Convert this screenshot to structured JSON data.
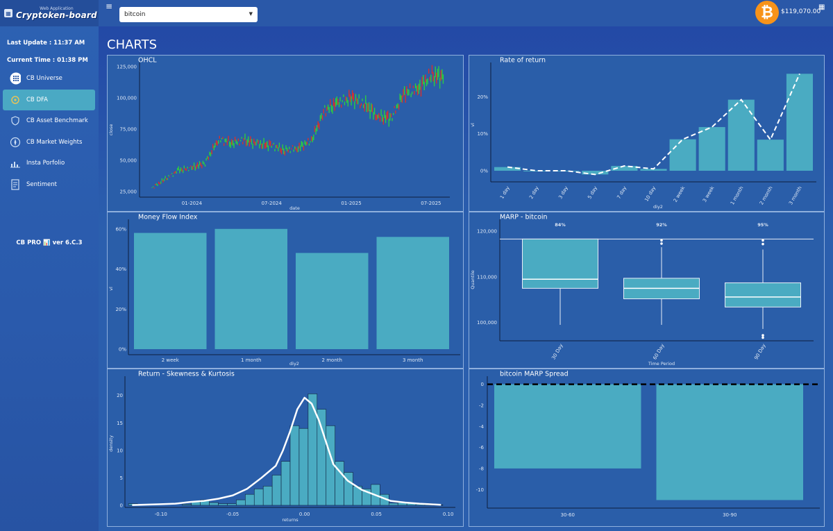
{
  "app": {
    "logo_sub": "Web Application",
    "logo_main": "Cryptoken-board",
    "last_update": "Last Update : 11:37 AM",
    "current_time": "Current Time : 01:38 PM",
    "version": "CB PRO 📊 ver 6.C.3"
  },
  "sidebar": {
    "items": [
      {
        "label": "CB Universe",
        "icon": "grid-circle-icon"
      },
      {
        "label": "CB DFA",
        "icon": "dfa-icon"
      },
      {
        "label": "CB Asset Benchmark",
        "icon": "shield-icon"
      },
      {
        "label": "CB Market Weights",
        "icon": "compass-icon"
      },
      {
        "label": "Insta Porfolio",
        "icon": "chart-icon"
      },
      {
        "label": "Sentiment",
        "icon": "document-icon"
      }
    ],
    "active": "CB DFA"
  },
  "header": {
    "menu_icon": "≡",
    "selected_asset": "bitcoin",
    "price": "$119,070.00",
    "coin_symbol": "₿",
    "grid_icon": "▦"
  },
  "main": {
    "title": "CHARTS"
  },
  "colors": {
    "bar": "#4aabc2",
    "up": "#2ecc40",
    "down": "#d9302c",
    "line": "#ffffff",
    "accent": "#f7931a"
  },
  "chart_data": [
    {
      "id": "ohlc",
      "type": "line",
      "title": "OHCL",
      "xlabel": "date",
      "ylabel": "close",
      "xticks": [
        "01-2024",
        "07-2024",
        "01-2025",
        "07-2025"
      ],
      "yticks": [
        "25,000",
        "50,000",
        "75,000",
        "100,000",
        "125,000"
      ],
      "ylim": [
        25000,
        125000
      ],
      "x": [
        "2023-10",
        "2023-11",
        "2023-12",
        "2024-01",
        "2024-02",
        "2024-03",
        "2024-04",
        "2024-05",
        "2024-06",
        "2024-07",
        "2024-08",
        "2024-09",
        "2024-10",
        "2024-11",
        "2024-12",
        "2025-01",
        "2025-02",
        "2025-03",
        "2025-04",
        "2025-05",
        "2025-06",
        "2025-07",
        "2025-08"
      ],
      "close": [
        28000,
        35000,
        42000,
        44000,
        48000,
        67000,
        64000,
        66000,
        63000,
        62000,
        58000,
        60000,
        66000,
        90000,
        96000,
        100000,
        95000,
        85000,
        84000,
        104000,
        107000,
        118000,
        117000
      ]
    },
    {
      "id": "ror",
      "type": "bar",
      "title": "Rate of return",
      "xlabel": "diy2",
      "ylabel": "vl",
      "categories": [
        "1 day",
        "2 day",
        "3 day",
        "5 day",
        "7 day",
        "10 day",
        "2 week",
        "3 week",
        "1 month",
        "2 month",
        "3 month"
      ],
      "values": [
        1.0,
        0.0,
        0.0,
        -1.0,
        1.3,
        0.5,
        8.5,
        11.8,
        19.2,
        8.4,
        26.2
      ],
      "yticks": [
        "0%",
        "10%",
        "20%"
      ],
      "ylim": [
        -1.5,
        27
      ]
    },
    {
      "id": "mfi",
      "type": "bar",
      "title": "Money Flow Index",
      "xlabel": "diy2",
      "ylabel": "vl",
      "categories": [
        "2 week",
        "1 month",
        "2 month",
        "3 month"
      ],
      "values": [
        58,
        60,
        48,
        56
      ],
      "yticks": [
        "0%",
        "20%",
        "40%",
        "60%"
      ],
      "ylim": [
        0,
        62
      ]
    },
    {
      "id": "marp",
      "type": "box",
      "title": "MARP - bitcoin",
      "xlabel": "Time Period",
      "ylabel": "Quantile",
      "categories": [
        "30 Day",
        "60 Day",
        "90 Day"
      ],
      "labels": [
        "84%",
        "92%",
        "95%"
      ],
      "yticks": [
        "100,000",
        "110,000",
        "120,000"
      ],
      "ylim": [
        96000,
        122000
      ],
      "current": 118300,
      "boxes": [
        {
          "wlo": 99500,
          "q1": 107500,
          "med": 109500,
          "q3": 118300,
          "whi": 118300,
          "outliers": []
        },
        {
          "wlo": 99500,
          "q1": 105200,
          "med": 107500,
          "q3": 109700,
          "whi": 116500,
          "outliers": [
            117300,
            118000
          ]
        },
        {
          "wlo": 98600,
          "q1": 103400,
          "med": 105600,
          "q3": 108700,
          "whi": 116000,
          "outliers": [
            97200,
            96700,
            117200,
            118000
          ]
        }
      ]
    },
    {
      "id": "skew",
      "type": "bar",
      "title": "Return - Skewness & Kurtosis",
      "xlabel": "returns",
      "ylabel": "density",
      "xticks": [
        "-0.10",
        "-0.05",
        "0.00",
        "0.05",
        "0.10"
      ],
      "yticks": [
        "0",
        "5",
        "10",
        "15",
        "20"
      ],
      "xlim": [
        -0.125,
        0.105
      ],
      "ylim": [
        0,
        23
      ],
      "bin_width": 0.00625,
      "bin_start": -0.1225,
      "counts": [
        0.3,
        0,
        0,
        0,
        0,
        0,
        0.2,
        0.6,
        1.0,
        0.5,
        0.3,
        0.3,
        1.0,
        2.0,
        3.0,
        3.5,
        5.5,
        8.0,
        14.5,
        14.0,
        20.3,
        17.5,
        14.5,
        8.0,
        6.0,
        3.5,
        3.0,
        3.8,
        2.0,
        0.4,
        0.5,
        0.4,
        0.2,
        0.3,
        0.1
      ],
      "kde_x": [
        -0.12,
        -0.1,
        -0.09,
        -0.08,
        -0.07,
        -0.06,
        -0.05,
        -0.04,
        -0.03,
        -0.02,
        -0.015,
        -0.01,
        -0.005,
        0.0,
        0.005,
        0.01,
        0.015,
        0.02,
        0.03,
        0.04,
        0.05,
        0.06,
        0.07,
        0.08,
        0.095
      ],
      "kde_y": [
        0.05,
        0.2,
        0.3,
        0.6,
        0.8,
        1.2,
        1.8,
        3.0,
        5.0,
        7.2,
        10.0,
        13.5,
        17.5,
        19.6,
        18.5,
        15.5,
        11.5,
        7.5,
        4.5,
        2.8,
        1.8,
        0.8,
        0.5,
        0.3,
        0.1
      ]
    },
    {
      "id": "spread",
      "type": "bar",
      "title": "bitcoin MARP Spread",
      "categories": [
        "30-60",
        "30-90"
      ],
      "values": [
        -8,
        -11
      ],
      "yticks": [
        "0",
        "-2",
        "-4",
        "-6",
        "-8",
        "-10"
      ],
      "ylim": [
        -11.5,
        0.5
      ]
    }
  ]
}
